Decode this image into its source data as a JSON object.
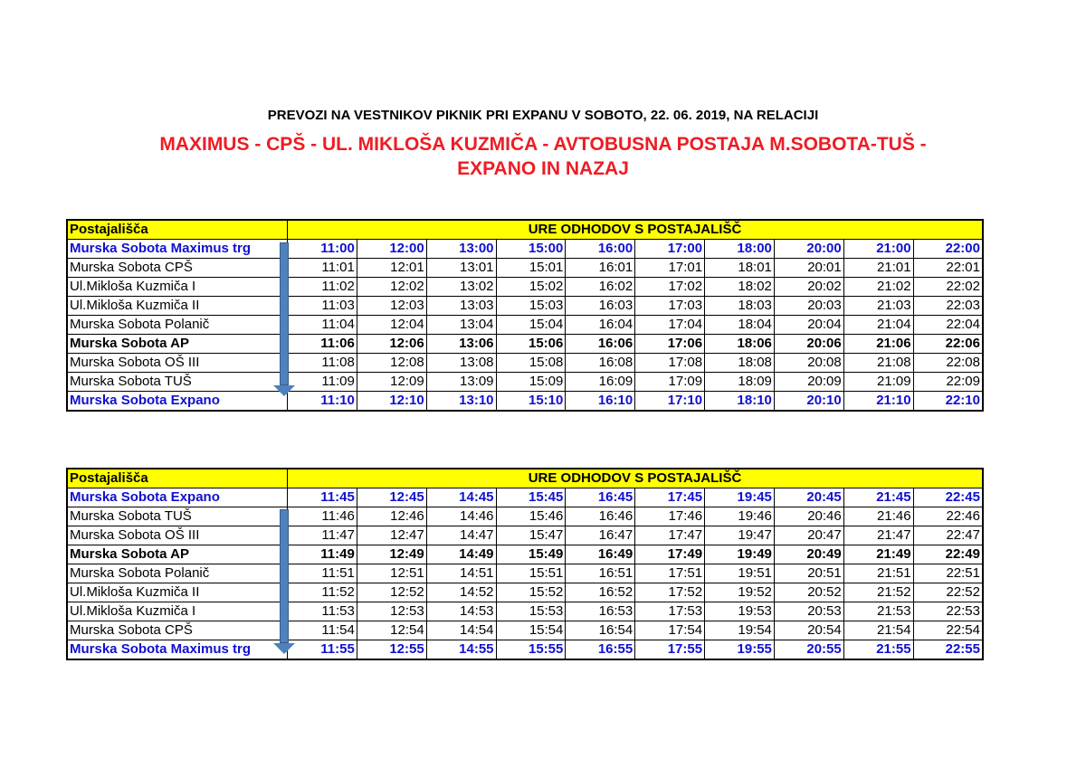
{
  "title": "PREVOZI NA VESTNIKOV PIKNIK PRI EXPANU V SOBOTO, 22. 06. 2019, NA RELACIJI",
  "route": "MAXIMUS - CPŠ - UL. MIKLOŠA KUZMIČA - AVTOBUSNA POSTAJA M.SOBOTA-TUŠ - EXPANO IN NAZAJ",
  "accent_color": "#ee1c24",
  "tables": [
    {
      "header_stop": "Postajališča",
      "header_times": "URE ODHODOV S POSTAJALIŠČ",
      "rows": [
        {
          "stop": "Murska Sobota Maximus trg",
          "style": "blue",
          "times": [
            "11:00",
            "12:00",
            "13:00",
            "15:00",
            "16:00",
            "17:00",
            "18:00",
            "20:00",
            "21:00",
            "22:00"
          ]
        },
        {
          "stop": "Murska Sobota CPŠ",
          "style": "",
          "times": [
            "11:01",
            "12:01",
            "13:01",
            "15:01",
            "16:01",
            "17:01",
            "18:01",
            "20:01",
            "21:01",
            "22:01"
          ]
        },
        {
          "stop": "Ul.Mikloša Kuzmiča I",
          "style": "",
          "times": [
            "11:02",
            "12:02",
            "13:02",
            "15:02",
            "16:02",
            "17:02",
            "18:02",
            "20:02",
            "21:02",
            "22:02"
          ]
        },
        {
          "stop": "Ul.Mikloša Kuzmiča II",
          "style": "",
          "times": [
            "11:03",
            "12:03",
            "13:03",
            "15:03",
            "16:03",
            "17:03",
            "18:03",
            "20:03",
            "21:03",
            "22:03"
          ]
        },
        {
          "stop": "Murska Sobota Polanič",
          "style": "",
          "times": [
            "11:04",
            "12:04",
            "13:04",
            "15:04",
            "16:04",
            "17:04",
            "18:04",
            "20:04",
            "21:04",
            "22:04"
          ]
        },
        {
          "stop": "Murska Sobota AP",
          "style": "bold",
          "times": [
            "11:06",
            "12:06",
            "13:06",
            "15:06",
            "16:06",
            "17:06",
            "18:06",
            "20:06",
            "21:06",
            "22:06"
          ]
        },
        {
          "stop": "Murska Sobota OŠ III",
          "style": "",
          "times": [
            "11:08",
            "12:08",
            "13:08",
            "15:08",
            "16:08",
            "17:08",
            "18:08",
            "20:08",
            "21:08",
            "22:08"
          ]
        },
        {
          "stop": "Murska Sobota TUŠ",
          "style": "",
          "times": [
            "11:09",
            "12:09",
            "13:09",
            "15:09",
            "16:09",
            "17:09",
            "18:09",
            "20:09",
            "21:09",
            "22:09"
          ]
        },
        {
          "stop": "Murska Sobota Expano",
          "style": "blue",
          "times": [
            "11:10",
            "12:10",
            "13:10",
            "15:10",
            "16:10",
            "17:10",
            "18:10",
            "20:10",
            "21:10",
            "22:10"
          ]
        }
      ]
    },
    {
      "header_stop": "Postajališča",
      "header_times": "URE ODHODOV S POSTAJALIŠČ",
      "rows": [
        {
          "stop": "Murska Sobota Expano",
          "style": "blue",
          "times": [
            "11:45",
            "12:45",
            "14:45",
            "15:45",
            "16:45",
            "17:45",
            "19:45",
            "20:45",
            "21:45",
            "22:45"
          ]
        },
        {
          "stop": "Murska Sobota TUŠ",
          "style": "",
          "times": [
            "11:46",
            "12:46",
            "14:46",
            "15:46",
            "16:46",
            "17:46",
            "19:46",
            "20:46",
            "21:46",
            "22:46"
          ]
        },
        {
          "stop": "Murska Sobota OŠ III",
          "style": "",
          "times": [
            "11:47",
            "12:47",
            "14:47",
            "15:47",
            "16:47",
            "17:47",
            "19:47",
            "20:47",
            "21:47",
            "22:47"
          ]
        },
        {
          "stop": "Murska Sobota AP",
          "style": "bold",
          "times": [
            "11:49",
            "12:49",
            "14:49",
            "15:49",
            "16:49",
            "17:49",
            "19:49",
            "20:49",
            "21:49",
            "22:49"
          ]
        },
        {
          "stop": "Murska Sobota Polanič",
          "style": "",
          "times": [
            "11:51",
            "12:51",
            "14:51",
            "15:51",
            "16:51",
            "17:51",
            "19:51",
            "20:51",
            "21:51",
            "22:51"
          ]
        },
        {
          "stop": "Ul.Mikloša Kuzmiča II",
          "style": "",
          "times": [
            "11:52",
            "12:52",
            "14:52",
            "15:52",
            "16:52",
            "17:52",
            "19:52",
            "20:52",
            "21:52",
            "22:52"
          ]
        },
        {
          "stop": "Ul.Mikloša Kuzmiča I",
          "style": "",
          "times": [
            "11:53",
            "12:53",
            "14:53",
            "15:53",
            "16:53",
            "17:53",
            "19:53",
            "20:53",
            "21:53",
            "22:53"
          ]
        },
        {
          "stop": "Murska Sobota CPŠ",
          "style": "",
          "times": [
            "11:54",
            "12:54",
            "14:54",
            "15:54",
            "16:54",
            "17:54",
            "19:54",
            "20:54",
            "21:54",
            "22:54"
          ]
        },
        {
          "stop": "Murska Sobota Maximus trg",
          "style": "blue",
          "times": [
            "11:55",
            "12:55",
            "14:55",
            "15:55",
            "16:55",
            "17:55",
            "19:55",
            "20:55",
            "21:55",
            "22:55"
          ]
        }
      ]
    }
  ]
}
